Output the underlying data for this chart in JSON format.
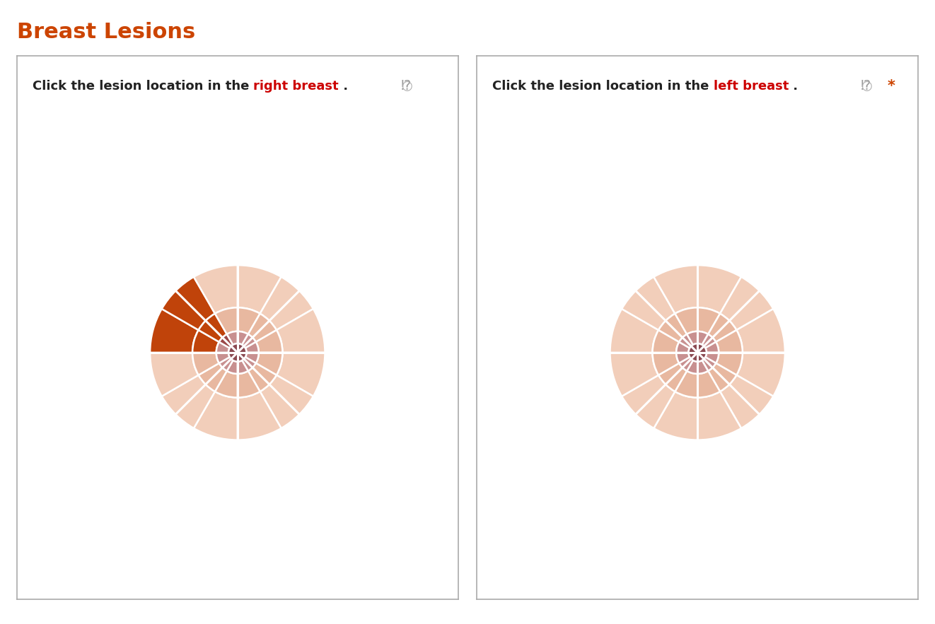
{
  "title": "Breast Lesions",
  "title_color": "#CC4400",
  "title_fontsize": 22,
  "title_fontweight": "bold",
  "background_color": "#ffffff",
  "panel_bg": "#ffffff",
  "panels": [
    {
      "label_parts": [
        {
          "text": "Click the lesion location in the ",
          "color": "#222222"
        },
        {
          "text": "right breast",
          "color": "#cc0000"
        },
        {
          "text": " .",
          "color": "#222222"
        }
      ],
      "has_comment_icon": true,
      "has_asterisk": false,
      "highlighted_outer_segments": [
        9,
        10
      ],
      "highlighted_mid_segments": [
        9,
        10
      ],
      "highlighted_inner_segment": 10,
      "highlight_color": "#C0430A",
      "highlight_inner_color": "#9B4848"
    },
    {
      "label_parts": [
        {
          "text": "Click the lesion location in the ",
          "color": "#222222"
        },
        {
          "text": "left breast",
          "color": "#cc0000"
        },
        {
          "text": " .",
          "color": "#222222"
        }
      ],
      "has_comment_icon": true,
      "has_asterisk": true,
      "asterisk_color": "#CC4400",
      "highlighted_outer_segments": [],
      "highlighted_mid_segments": [],
      "highlighted_inner_segment": null,
      "highlight_color": null,
      "highlight_inner_color": null
    }
  ],
  "n_segments": 12,
  "ring_radii": [
    0.07,
    0.165,
    0.35,
    0.68
  ],
  "outer_color": "#F2CEBA",
  "mid_color": "#E8B8A0",
  "inner_ring_color": "#C89090",
  "nipple_color": "#8B4A52",
  "grid_color": "#ffffff",
  "grid_linewidth": 1.8,
  "cross_linewidth": 2.2
}
